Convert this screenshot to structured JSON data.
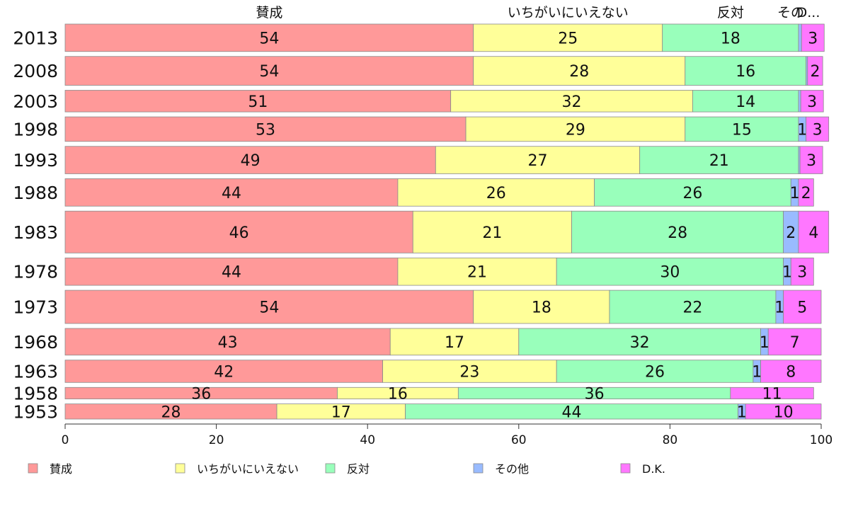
{
  "chart_data": {
    "type": "bar",
    "orientation": "horizontal",
    "stacked": true,
    "xlim": [
      0,
      100
    ],
    "xticks": [
      0,
      20,
      40,
      60,
      80,
      100
    ],
    "categories": [
      "2013",
      "2008",
      "2003",
      "1998",
      "1993",
      "1988",
      "1983",
      "1978",
      "1973",
      "1968",
      "1963",
      "1958",
      "1953"
    ],
    "column_headers": [
      "賛成",
      "いちがいにいえない",
      "反対",
      "その",
      "D..."
    ],
    "series": [
      {
        "name": "賛成",
        "color": "#ff9999",
        "values": [
          54,
          54,
          51,
          53,
          49,
          44,
          46,
          44,
          54,
          43,
          42,
          36,
          28
        ]
      },
      {
        "name": "いちがいにいえない",
        "color": "#ffff99",
        "values": [
          25,
          28,
          32,
          29,
          27,
          26,
          21,
          21,
          18,
          17,
          23,
          16,
          17
        ]
      },
      {
        "name": "反対",
        "color": "#99ffbb",
        "values": [
          18,
          16,
          14,
          15,
          21,
          26,
          28,
          30,
          22,
          32,
          26,
          36,
          44
        ]
      },
      {
        "name": "その他",
        "color": "#99bbff",
        "values": [
          0.4,
          0.2,
          0.3,
          1,
          0.2,
          1,
          2,
          1,
          1,
          1,
          1,
          0,
          1
        ]
      },
      {
        "name": "D.K.",
        "color": "#ff77ff",
        "values": [
          3,
          2,
          3,
          3,
          3,
          2,
          4,
          3,
          5,
          7,
          8,
          11,
          10
        ]
      }
    ],
    "data_labels": [
      [
        "54",
        "25",
        "18",
        "",
        "3"
      ],
      [
        "54",
        "28",
        "16",
        "",
        "2"
      ],
      [
        "51",
        "32",
        "14",
        "",
        "3"
      ],
      [
        "53",
        "29",
        "15",
        "1",
        "3"
      ],
      [
        "49",
        "27",
        "21",
        "",
        "3"
      ],
      [
        "44",
        "26",
        "26",
        "1",
        "2"
      ],
      [
        "46",
        "21",
        "28",
        "2",
        "4"
      ],
      [
        "44",
        "21",
        "30",
        "1",
        "3"
      ],
      [
        "54",
        "18",
        "22",
        "1",
        "5"
      ],
      [
        "43",
        "17",
        "32",
        "1",
        "7"
      ],
      [
        "42",
        "23",
        "26",
        "1",
        "8"
      ],
      [
        "36",
        "16",
        "36",
        "",
        "11"
      ],
      [
        "28",
        "17",
        "44",
        "1",
        "10"
      ]
    ],
    "row_weights": [
      0.38,
      0.4,
      0.3,
      0.34,
      0.38,
      0.38,
      0.58,
      0.38,
      0.46,
      0.37,
      0.31,
      0.16,
      0.21
    ],
    "legend": {
      "position": "bottom",
      "items": [
        "賛成",
        "いちがいにいえない",
        "反対",
        "その他",
        "D.K."
      ]
    },
    "grid": false
  }
}
